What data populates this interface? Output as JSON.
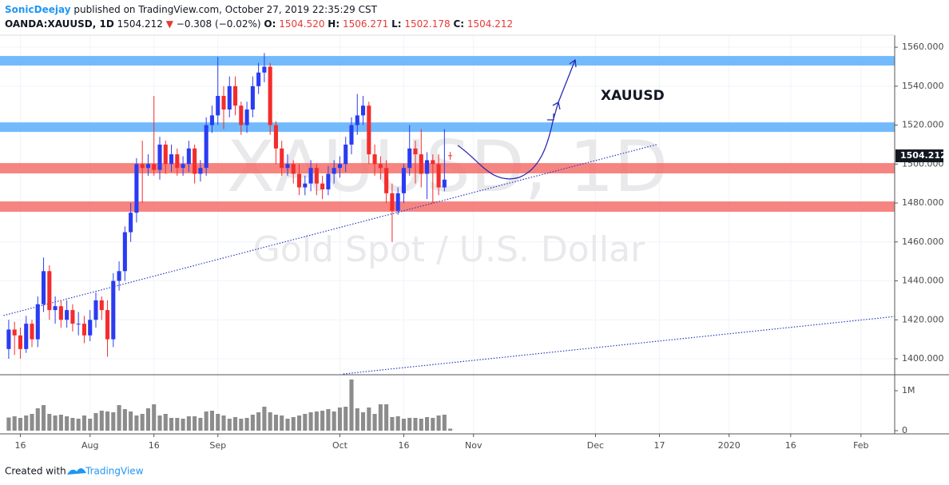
{
  "header": {
    "author": "SonicDeejay",
    "published": " published on TradingView.com, October 27, 2019 22:35:29 CST",
    "symbol": "OANDA:XAUUSD, 1D",
    "last": "1504.212",
    "arrow": "▼",
    "change": "−0.308 (−0.02%)",
    "o_label": "O:",
    "open": "1504.520",
    "h_label": "H:",
    "high": "1506.271",
    "l_label": "L:",
    "low": "1502.178",
    "c_label": "C:",
    "close": "1504.212"
  },
  "footer": {
    "created": "Created with",
    "brand": "TradingView"
  },
  "chart_data": {
    "type": "candlestick",
    "watermark": "XAUUSD, 1D",
    "watermark_sub": "Gold Spot / U.S. Dollar",
    "annotation": "XAUUSD",
    "up_color": "#2a3cf2",
    "down_color": "#f42c2c",
    "volume_color": "#8c8c8c",
    "grid": true,
    "xlim": [
      -15.5,
      138.5
    ],
    "xticks": [
      {
        "value": -12,
        "label": "16"
      },
      {
        "value": 0,
        "label": "Aug"
      },
      {
        "value": 11,
        "label": "16"
      },
      {
        "value": 22,
        "label": "Sep"
      },
      {
        "value": 43,
        "label": "Oct"
      },
      {
        "value": 54,
        "label": "16"
      },
      {
        "value": 66,
        "label": "Nov"
      },
      {
        "value": 87,
        "label": "Dec"
      },
      {
        "value": 98,
        "label": "17"
      },
      {
        "value": 110,
        "label": "2020"
      },
      {
        "value": 120.6,
        "label": "16"
      },
      {
        "value": 132.7,
        "label": "Feb"
      }
    ],
    "ylim": [
      1392.2,
      1566.2
    ],
    "yticks": [
      {
        "value": 1400,
        "label": "1400.000"
      },
      {
        "value": 1420,
        "label": "1420.000"
      },
      {
        "value": 1440,
        "label": "1440.000"
      },
      {
        "value": 1460,
        "label": "1460.000"
      },
      {
        "value": 1480,
        "label": "1480.000"
      },
      {
        "value": 1500,
        "label": "1500.000"
      },
      {
        "value": 1520,
        "label": "1520.000"
      },
      {
        "value": 1540,
        "label": "1540.000"
      },
      {
        "value": 1560,
        "label": "1560.000"
      }
    ],
    "volume_ylim": [
      -80000,
      1380000
    ],
    "volume_yticks": [
      0,
      {
        "value": 1000000,
        "label": "1M"
      }
    ],
    "x": [
      -14,
      -13,
      -12,
      -11,
      -10,
      -9,
      -8,
      -7,
      -6,
      -5,
      -4,
      -3,
      -2,
      -1,
      0,
      1,
      2,
      3,
      4,
      5,
      6,
      7,
      8,
      9,
      10,
      11,
      12,
      13,
      14,
      15,
      16,
      17,
      18,
      19,
      20,
      21,
      22,
      23,
      24,
      25,
      26,
      27,
      28,
      29,
      30,
      31,
      32,
      33,
      34,
      35,
      36,
      37,
      38,
      39,
      40,
      41,
      42,
      43,
      44,
      45,
      46,
      47,
      48,
      49,
      50,
      51,
      52,
      53,
      54,
      55,
      56,
      57,
      58,
      59,
      60,
      61,
      62
    ],
    "open": [
      1405,
      1415,
      1412,
      1405,
      1418,
      1410,
      1428,
      1445,
      1425,
      1427,
      1420,
      1425,
      1418,
      1418,
      1412,
      1420,
      1430,
      1425,
      1410,
      1440,
      1445,
      1465,
      1475,
      1500,
      1498,
      1500,
      1497,
      1510,
      1500,
      1505,
      1498,
      1500,
      1508,
      1495,
      1498,
      1520,
      1525,
      1535,
      1528,
      1540,
      1530,
      1520,
      1528,
      1540,
      1547,
      1550,
      1520,
      1508,
      1498,
      1500,
      1495,
      1488,
      1490,
      1498,
      1490,
      1487,
      1495,
      1498,
      1500,
      1510,
      1520,
      1525,
      1530,
      1505,
      1500,
      1498,
      1485,
      1476,
      1485,
      1498,
      1508,
      1505,
      1495,
      1502,
      1500,
      1488,
      1504.52
    ],
    "high": [
      1420,
      1419,
      1416,
      1422,
      1420,
      1432,
      1452,
      1448,
      1432,
      1430,
      1430,
      1428,
      1424,
      1422,
      1425,
      1434,
      1432,
      1430,
      1444,
      1450,
      1468,
      1480,
      1503,
      1512,
      1505,
      1535,
      1514,
      1512,
      1510,
      1508,
      1504,
      1512,
      1510,
      1502,
      1524,
      1530,
      1555,
      1540,
      1545,
      1545,
      1532,
      1532,
      1545,
      1552,
      1557,
      1552,
      1522,
      1512,
      1505,
      1502,
      1500,
      1494,
      1502,
      1500,
      1494,
      1499,
      1502,
      1504,
      1514,
      1524,
      1536,
      1535,
      1532,
      1510,
      1504,
      1502,
      1490,
      1488,
      1500,
      1520,
      1512,
      1518,
      1506,
      1505,
      1505,
      1518,
      1506.271
    ],
    "low": [
      1400,
      1402,
      1400,
      1403,
      1406,
      1406,
      1424,
      1420,
      1418,
      1416,
      1416,
      1414,
      1412,
      1408,
      1409,
      1416,
      1420,
      1401,
      1406,
      1435,
      1440,
      1460,
      1470,
      1480,
      1494,
      1494,
      1492,
      1495,
      1496,
      1494,
      1494,
      1496,
      1490,
      1491,
      1494,
      1516,
      1520,
      1518,
      1524,
      1525,
      1515,
      1516,
      1524,
      1536,
      1542,
      1515,
      1500,
      1494,
      1494,
      1490,
      1484,
      1484,
      1486,
      1484,
      1482,
      1484,
      1490,
      1493,
      1496,
      1505,
      1515,
      1520,
      1500,
      1494,
      1492,
      1480,
      1460,
      1474,
      1480,
      1494,
      1490,
      1488,
      1482,
      1480,
      1484,
      1486,
      1502.178
    ],
    "close": [
      1415,
      1412,
      1405,
      1418,
      1410,
      1428,
      1445,
      1425,
      1427,
      1420,
      1425,
      1418,
      1418,
      1412,
      1420,
      1430,
      1425,
      1410,
      1440,
      1445,
      1465,
      1475,
      1500,
      1498,
      1500,
      1497,
      1510,
      1500,
      1505,
      1498,
      1500,
      1508,
      1495,
      1498,
      1520,
      1525,
      1535,
      1528,
      1540,
      1530,
      1520,
      1528,
      1540,
      1547,
      1550,
      1520,
      1508,
      1498,
      1500,
      1495,
      1488,
      1490,
      1498,
      1490,
      1487,
      1495,
      1498,
      1500,
      1510,
      1520,
      1525,
      1530,
      1505,
      1500,
      1498,
      1485,
      1476,
      1485,
      1498,
      1508,
      1505,
      1495,
      1502,
      1500,
      1488,
      1492,
      1504.212
    ],
    "volume": [
      330000,
      360000,
      320000,
      380000,
      420000,
      560000,
      640000,
      420000,
      380000,
      400000,
      360000,
      320000,
      300000,
      380000,
      300000,
      440000,
      500000,
      480000,
      460000,
      640000,
      540000,
      480000,
      380000,
      420000,
      560000,
      660000,
      380000,
      420000,
      320000,
      320000,
      300000,
      360000,
      360000,
      320000,
      480000,
      500000,
      420000,
      380000,
      300000,
      340000,
      300000,
      320000,
      400000,
      460000,
      600000,
      460000,
      400000,
      380000,
      300000,
      340000,
      380000,
      420000,
      460000,
      480000,
      500000,
      540000,
      480000,
      580000,
      600000,
      1280000,
      560000,
      460000,
      580000,
      420000,
      660000,
      660000,
      340000,
      360000,
      300000,
      320000,
      320000,
      300000,
      340000,
      320000,
      380000,
      400000,
      50000
    ],
    "last_label": "1504.212",
    "zones": [
      {
        "range": [
          1550.6,
          1555.5
        ],
        "color": "#5aaefb"
      },
      {
        "range": [
          1516.5,
          1521.4
        ],
        "color": "#5aaefb"
      },
      {
        "range": [
          1495.2,
          1500.5
        ],
        "color": "#f56e6a"
      },
      {
        "range": [
          1475.5,
          1480.8
        ],
        "color": "#f56e6a"
      }
    ],
    "trendlines": [
      {
        "x": [
          -14.9,
          97.5
        ],
        "y": [
          1422.2,
          1510
        ],
        "color": "#2a3cbf"
      },
      {
        "x": [
          43.6,
          138.5
        ],
        "y": [
          1392.2,
          1421.7
        ],
        "color": "#2a3cbf"
      }
    ]
  }
}
